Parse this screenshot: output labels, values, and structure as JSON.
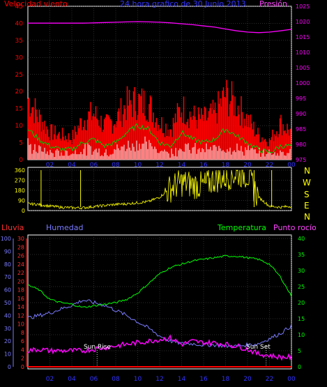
{
  "colors": {
    "background": "#000000",
    "frame": "#ffffff",
    "grid": "#5a5a5a",
    "wind_speed": "#ff0000",
    "wind_gust": "#ff0000",
    "wind_avg": "#00cc00",
    "wind_min": "#ffffff",
    "pressure": "#ff00ff",
    "direction": "#ffff00",
    "rain_axis": "#ff3030",
    "humidity": "#7a7aff",
    "temperature": "#00ff00",
    "dewpoint": "#ff00ff",
    "rain": "#ff0000",
    "sun_lines": "#ffffff"
  },
  "top": {
    "left_label": "Velocidad viento",
    "title": "24 hora grafico de   30 Junio 2013",
    "right_label": "Presión"
  },
  "middle": {
    "compass": [
      "N",
      "W",
      "S",
      "E",
      "N"
    ]
  },
  "bottom": {
    "label_rain": "Lluvia",
    "label_humidity": "Humedad",
    "label_temperature": "Temperatura",
    "label_dewpoint": "Punto rocío",
    "sunrise": "Sun Rise",
    "sunset": "Sun Set"
  },
  "chart_data": [
    {
      "type": "line",
      "x_ticks": [
        "02",
        "04",
        "06",
        "08",
        "10",
        "12",
        "14",
        "16",
        "18",
        "20",
        "22",
        "00"
      ],
      "y_left_ticks": [
        "0",
        "5",
        "10",
        "15",
        "20",
        "25",
        "30",
        "35",
        "40",
        "45"
      ],
      "y_left_lim": [
        0,
        45
      ],
      "y_right_ticks": [
        "975",
        "980",
        "985",
        "990",
        "995",
        "1000",
        "1005",
        "1010",
        "1015",
        "1020",
        "1025"
      ],
      "y_right_lim": [
        975,
        1025
      ],
      "hours": [
        0,
        1,
        2,
        3,
        4,
        5,
        6,
        7,
        8,
        9,
        10,
        11,
        12,
        13,
        14,
        15,
        16,
        17,
        18,
        19,
        20,
        21,
        22,
        23,
        24
      ],
      "series": [
        {
          "name": "Velocidad viento",
          "axis": "left",
          "values": [
            15,
            10,
            6,
            5,
            4,
            9,
            11,
            7,
            9,
            15,
            16,
            15,
            8,
            7,
            13,
            10,
            9,
            11,
            15,
            13,
            9,
            4,
            3,
            8,
            6
          ]
        },
        {
          "name": "Presión",
          "axis": "right",
          "values": [
            1019.5,
            1019.5,
            1019.5,
            1019.5,
            1019.5,
            1019.5,
            1019.6,
            1019.7,
            1019.8,
            1019.9,
            1020,
            1019.9,
            1019.8,
            1019.6,
            1019.3,
            1019,
            1018.6,
            1018.2,
            1017.6,
            1017,
            1016.6,
            1016.4,
            1016.6,
            1017,
            1017.5
          ]
        }
      ],
      "gust": [
        20,
        14,
        9,
        8,
        7,
        13,
        15,
        11,
        13,
        18,
        19,
        18,
        12,
        10,
        17,
        14,
        13,
        15,
        21,
        18,
        13,
        8,
        6,
        12,
        9
      ],
      "avg": [
        9,
        6,
        4,
        3,
        3,
        5,
        6,
        4,
        5,
        8,
        10,
        9,
        5,
        4,
        8,
        6,
        5,
        6,
        9,
        7,
        5,
        3,
        2,
        4,
        4
      ],
      "min": [
        3,
        2,
        1,
        1,
        1,
        2,
        2,
        1,
        2,
        3,
        4,
        3,
        2,
        1,
        3,
        2,
        2,
        2,
        3,
        2,
        2,
        1,
        1,
        1,
        2
      ]
    },
    {
      "type": "scatter",
      "x_ticks": [
        "02",
        "04",
        "06",
        "08",
        "10",
        "12",
        "14",
        "16",
        "18",
        "20",
        "22",
        "00"
      ],
      "y_ticks": [
        "0",
        "90",
        "180",
        "270",
        "360"
      ],
      "y_lim": [
        0,
        360
      ],
      "hours": [
        0,
        1,
        2,
        3,
        4,
        5,
        6,
        7,
        8,
        9,
        10,
        11,
        12,
        13,
        14,
        15,
        16,
        17,
        18,
        19,
        20,
        21,
        22,
        23,
        24
      ],
      "values": [
        60,
        55,
        40,
        30,
        25,
        25,
        35,
        45,
        55,
        60,
        70,
        80,
        120,
        200,
        250,
        230,
        220,
        280,
        300,
        330,
        320,
        120,
        40,
        30,
        40
      ]
    },
    {
      "type": "line",
      "x_ticks": [
        "02",
        "04",
        "06",
        "08",
        "10",
        "12",
        "14",
        "16",
        "18",
        "20",
        "22",
        "00"
      ],
      "y_humidity_ticks": [
        "0",
        "10",
        "20",
        "30",
        "40",
        "50",
        "60",
        "70",
        "80",
        "90",
        "100"
      ],
      "y_rain_ticks": [
        "0",
        "2",
        "4",
        "6",
        "8",
        "10",
        "12",
        "14",
        "16",
        "18",
        "20",
        "22",
        "24",
        "26",
        "28",
        "30"
      ],
      "y_temp_ticks": [
        "0",
        "5",
        "10",
        "15",
        "20",
        "25",
        "30",
        "35",
        "40"
      ],
      "y_temp_lim": [
        0,
        40
      ],
      "hours": [
        0,
        1,
        2,
        3,
        4,
        5,
        6,
        7,
        8,
        9,
        10,
        11,
        12,
        13,
        14,
        15,
        16,
        17,
        18,
        19,
        20,
        21,
        22,
        23,
        24
      ],
      "series": [
        {
          "name": "Temperatura",
          "axis": "temp",
          "values": [
            25.5,
            24,
            21,
            20,
            19.5,
            18.5,
            19,
            19.5,
            20,
            21,
            23,
            26,
            29,
            31,
            32,
            33,
            33.5,
            34,
            34.5,
            34.5,
            34,
            33.5,
            32,
            28,
            22
          ]
        },
        {
          "name": "Humedad",
          "axis": "humidity",
          "values": [
            38,
            40,
            42,
            45,
            48,
            52,
            50,
            48,
            44,
            40,
            35,
            30,
            24,
            20,
            18,
            18,
            17,
            17,
            16,
            16,
            17,
            18,
            22,
            26,
            32
          ]
        },
        {
          "name": "Punto rocío",
          "axis": "temp",
          "values": [
            5,
            5.5,
            5,
            5,
            5,
            5,
            5.5,
            6,
            6.5,
            7,
            7.5,
            8,
            8.5,
            9,
            7,
            8,
            7.5,
            7.5,
            7,
            6.5,
            5.5,
            4,
            3.5,
            3,
            3
          ]
        }
      ],
      "rain": [
        0,
        0,
        0,
        0,
        0,
        0,
        0,
        0,
        0,
        0,
        0,
        0,
        0,
        0,
        0,
        0,
        0,
        0,
        0,
        0,
        0,
        0,
        0,
        0,
        0
      ],
      "sunrise_hour": 6.3,
      "sunset_hour": 21.7
    }
  ]
}
